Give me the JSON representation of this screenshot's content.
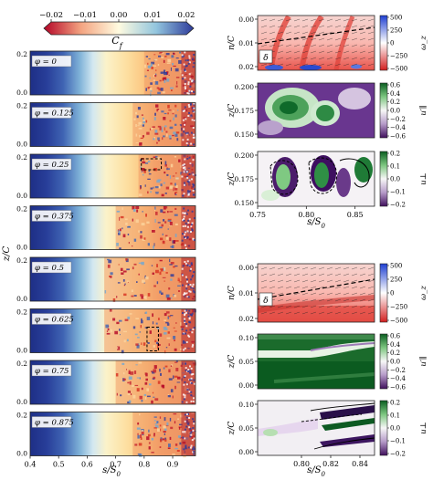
{
  "chart_data": [
    {
      "type": "heatmap",
      "colorbar": {
        "label": "C_f",
        "ticks": [
          "−0.02",
          "−0.01",
          "0.00",
          "0.01",
          "0.02"
        ],
        "range": [
          -0.02,
          0.02
        ]
      },
      "panels": [
        {
          "label": "φ = 0",
          "sep_onset": 0.8
        },
        {
          "label": "φ = 0.125",
          "sep_onset": 0.76
        },
        {
          "label": "φ = 0.25",
          "sep_onset": 0.78
        },
        {
          "label": "φ = 0.375",
          "sep_onset": 0.7
        },
        {
          "label": "φ = 0.5",
          "sep_onset": 0.66
        },
        {
          "label": "φ = 0.625",
          "sep_onset": 0.66
        },
        {
          "label": "φ = 0.75",
          "sep_onset": 0.7
        },
        {
          "label": "φ = 0.875",
          "sep_onset": 0.76
        }
      ],
      "x_ticks": [
        "0.4",
        "0.5",
        "0.6",
        "0.7",
        "0.8",
        "0.9"
      ],
      "xlim": [
        0.4,
        0.98
      ],
      "y_ticks": [
        "0.0",
        "0.2"
      ],
      "ylim": [
        0,
        0.2
      ],
      "xlabel": "s/S₀",
      "ylabel": "z/C"
    },
    {
      "type": "heatmap",
      "group": "top-right",
      "x_ticks": [
        "0.75",
        "0.80",
        "0.85"
      ],
      "xlim": [
        0.75,
        0.87
      ],
      "xlabel": "s/S₀",
      "panels": [
        {
          "ylabel": "n/C",
          "y_ticks": [
            "0.00",
            "0.01",
            "0.02"
          ],
          "ylim": [
            0,
            0.02
          ],
          "tag": "δ",
          "cbar_label": "ω_z",
          "cbar_ticks": [
            "500",
            "250",
            "0",
            "−250",
            "−500"
          ]
        },
        {
          "ylabel": "z/C",
          "y_ticks": [
            "0.200",
            "0.175",
            "0.150"
          ],
          "ylim": [
            0.14,
            0.21
          ],
          "cbar_label": "u′∥",
          "cbar_ticks": [
            "0.6",
            "0.4",
            "0.2",
            "0.0",
            "−0.2",
            "−0.4",
            "−0.6"
          ]
        },
        {
          "ylabel": "z/C",
          "y_ticks": [
            "0.200",
            "0.175",
            "0.150"
          ],
          "ylim": [
            0.14,
            0.21
          ],
          "cbar_label": "u⊥",
          "cbar_ticks": [
            "0.2",
            "0.1",
            "0.0",
            "−0.1",
            "−0.2"
          ]
        }
      ]
    },
    {
      "type": "heatmap",
      "group": "bottom-right",
      "x_ticks": [
        "0.80",
        "0.82",
        "0.84"
      ],
      "xlim": [
        0.77,
        0.85
      ],
      "xlabel": "s/S₀",
      "panels": [
        {
          "ylabel": "n/C",
          "y_ticks": [
            "0.00",
            "0.01",
            "0.02"
          ],
          "ylim": [
            0,
            0.02
          ],
          "tag": "δ",
          "cbar_label": "ω_z",
          "cbar_ticks": [
            "500",
            "250",
            "0",
            "−250",
            "−500"
          ]
        },
        {
          "ylabel": "z/C",
          "y_ticks": [
            "0.10",
            "0.05",
            "0.00"
          ],
          "ylim": [
            0,
            0.12
          ],
          "cbar_label": "u′∥",
          "cbar_ticks": [
            "0.6",
            "0.4",
            "0.2",
            "0.0",
            "−0.2",
            "−0.4",
            "−0.6"
          ]
        },
        {
          "ylabel": "z/C",
          "y_ticks": [
            "0.10",
            "0.05",
            "0.00"
          ],
          "ylim": [
            0,
            0.12
          ],
          "cbar_label": "u⊥",
          "cbar_ticks": [
            "0.2",
            "0.1",
            "0.0",
            "−0.1",
            "−0.2"
          ]
        }
      ]
    }
  ]
}
